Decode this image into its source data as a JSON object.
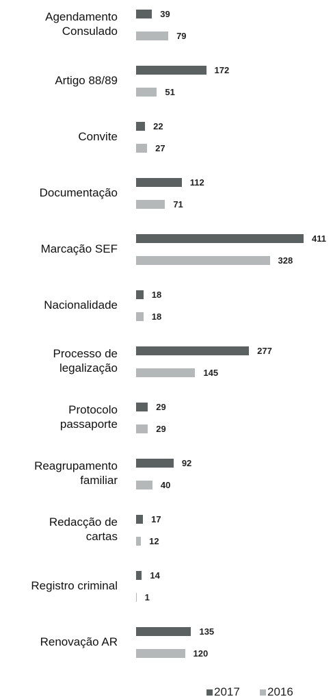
{
  "chart_data": {
    "type": "bar",
    "orientation": "horizontal",
    "categories": [
      "Agendamento\nConsulado",
      "Artigo 88/89",
      "Convite",
      "Documentação",
      "Marcação SEF",
      "Nacionalidade",
      "Processo de\nlegalização",
      "Protocolo\npassaporte",
      "Reagrupamento\nfamiliar",
      "Redacção de\ncartas",
      "Registro criminal",
      "Renovação AR"
    ],
    "series": [
      {
        "name": "2017",
        "color": "#5b6161",
        "values": [
          39,
          172,
          22,
          112,
          411,
          18,
          277,
          29,
          92,
          17,
          14,
          135
        ]
      },
      {
        "name": "2016",
        "color": "#b4b8b8",
        "values": [
          79,
          51,
          27,
          71,
          328,
          18,
          145,
          29,
          40,
          12,
          1,
          120
        ]
      }
    ],
    "legend": "bottom-right"
  }
}
